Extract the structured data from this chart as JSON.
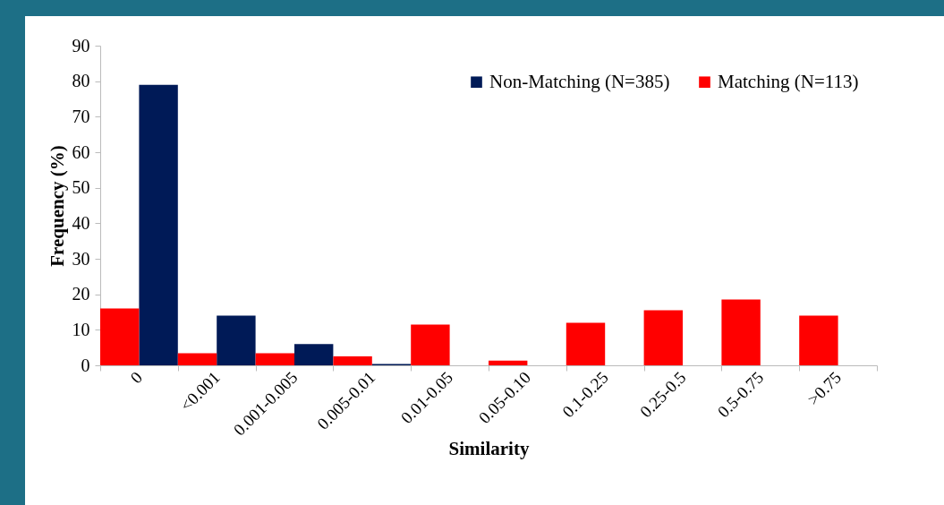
{
  "chart_data": {
    "type": "bar",
    "xlabel": "Similarity",
    "ylabel": "Frequency (%)",
    "categories": [
      "0",
      "<0.001",
      "0.001-0.005",
      "0.005-0.01",
      "0.01-0.05",
      "0.05-0.10",
      "0.1-0.25",
      "0.25-0.5",
      "0.5-0.75",
      ">0.75"
    ],
    "series": [
      {
        "name": "Non-Matching (N=385)",
        "color": "#001a57",
        "values": [
          79,
          14,
          6,
          0.4,
          0,
          0,
          0,
          0,
          0,
          0
        ]
      },
      {
        "name": "Matching (N=113)",
        "color": "#ff0000",
        "values": [
          16,
          3.4,
          3.4,
          2.5,
          11.5,
          1.3,
          12,
          15.5,
          18.5,
          14
        ]
      }
    ],
    "ylim": [
      0,
      90
    ],
    "yticks": [
      0,
      10,
      20,
      30,
      40,
      50,
      60,
      70,
      80,
      90
    ],
    "grid": false,
    "legend": "top right"
  }
}
